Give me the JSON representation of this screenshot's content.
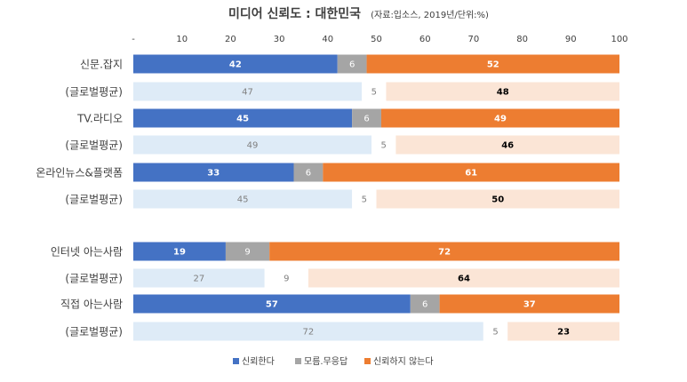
{
  "chart_data": {
    "type": "bar",
    "orientation": "horizontal",
    "stacked": true,
    "title": "미디어 신뢰도 : 대한민국",
    "subtitle": "(자료:입소스, 2019년/단위:%)",
    "xlim": [
      0,
      100
    ],
    "x_ticks": [
      "-",
      "10",
      "20",
      "30",
      "40",
      "50",
      "60",
      "70",
      "80",
      "90",
      "100"
    ],
    "categories": [
      "신문.잡지",
      "(글로벌평균)",
      "TV.라디오",
      "(글로벌평균)",
      "온라인뉴스&플랫폼",
      "(글로벌평균)",
      "인터넷 아는사람",
      "(글로벌평균)",
      "직접 아는사람",
      "(글로벌평균)"
    ],
    "row_kind": [
      "korea",
      "global",
      "korea",
      "global",
      "korea",
      "global",
      "korea",
      "global",
      "korea",
      "global"
    ],
    "series": [
      {
        "name": "신뢰한다",
        "values": [
          42,
          47,
          45,
          49,
          33,
          45,
          19,
          27,
          57,
          72
        ]
      },
      {
        "name": "모름.무응답",
        "values": [
          6,
          5,
          6,
          5,
          6,
          5,
          9,
          9,
          6,
          5
        ]
      },
      {
        "name": "신뢰하지 않는다",
        "values": [
          52,
          48,
          49,
          46,
          61,
          50,
          72,
          64,
          37,
          23
        ]
      }
    ],
    "colors": {
      "korea": [
        "#4472C4",
        "#A5A5A5",
        "#ED7D31"
      ],
      "global": [
        "#DEEBF7",
        "#FFFFFF",
        "#FBE5D6"
      ],
      "korea_label": [
        "#FFFFFF",
        "#FFFFFF",
        "#FFFFFF"
      ],
      "global_label": [
        "#7F7F7F",
        "#7F7F7F",
        "#000000"
      ]
    },
    "legend_position": "bottom",
    "grid": false
  }
}
